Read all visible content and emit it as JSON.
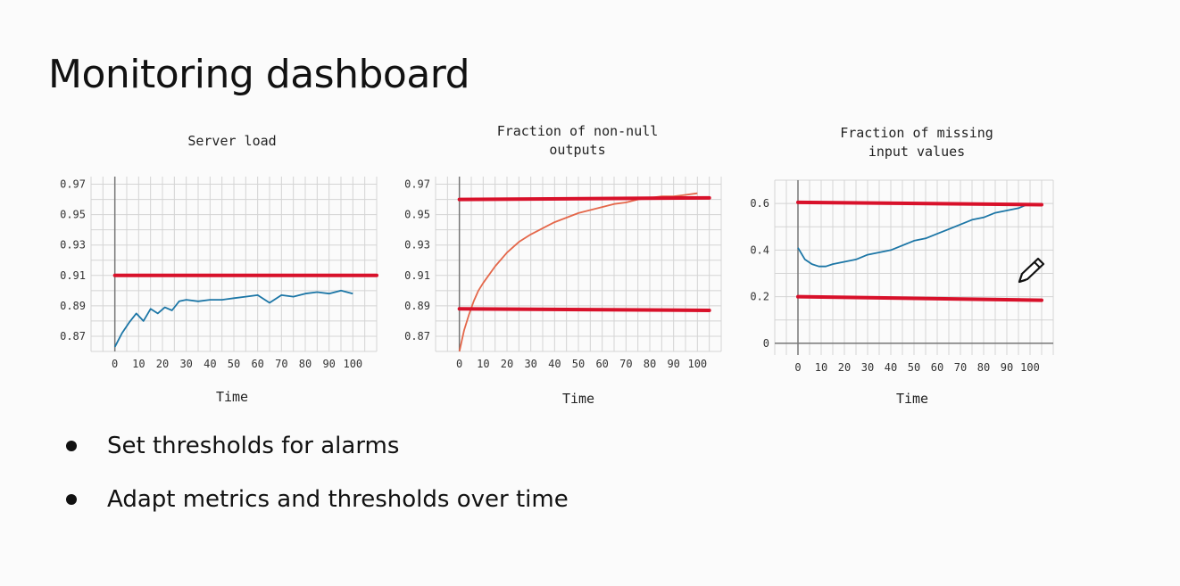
{
  "slide": {
    "title": "Monitoring dashboard",
    "bullets": [
      "Set thresholds for alarms",
      "Adapt metrics and thresholds over time"
    ]
  },
  "colors": {
    "threshold": "#d8112a",
    "series_blue": "#1c76a6",
    "series_orange": "#e4674a",
    "grid": "#d4d4d4",
    "axis": "#777777"
  },
  "icons": {
    "annotation": "pencil-icon"
  },
  "chart_data": [
    {
      "type": "line",
      "title": "Server load",
      "xlabel": "Time",
      "ylabel": "",
      "xlim": [
        -10,
        110
      ],
      "ylim": [
        0.86,
        0.975
      ],
      "xticks": [
        0,
        10,
        20,
        30,
        40,
        50,
        60,
        70,
        80,
        90,
        100
      ],
      "yticks": [
        0.87,
        0.89,
        0.91,
        0.93,
        0.95,
        0.97
      ],
      "yticklabels": [
        "0.87",
        "0.89",
        "0.91",
        "0.93",
        "0.95",
        "0.97"
      ],
      "grid": true,
      "series": [
        {
          "color": "#1c76a6",
          "x": [
            0,
            3,
            6,
            9,
            12,
            15,
            18,
            21,
            24,
            27,
            30,
            35,
            40,
            45,
            50,
            55,
            60,
            65,
            70,
            75,
            80,
            85,
            90,
            95,
            100
          ],
          "y": [
            0.863,
            0.872,
            0.879,
            0.885,
            0.88,
            0.888,
            0.885,
            0.889,
            0.887,
            0.893,
            0.894,
            0.893,
            0.894,
            0.894,
            0.895,
            0.896,
            0.897,
            0.892,
            0.897,
            0.896,
            0.898,
            0.899,
            0.898,
            0.9,
            0.898
          ]
        }
      ],
      "thresholds": [
        {
          "color": "#d8112a",
          "x": [
            0,
            110
          ],
          "y": [
            0.91,
            0.91
          ]
        }
      ]
    },
    {
      "type": "line",
      "title": "Fraction of non-null outputs",
      "xlabel": "Time",
      "ylabel": "",
      "xlim": [
        -10,
        110
      ],
      "ylim": [
        0.86,
        0.975
      ],
      "xticks": [
        0,
        10,
        20,
        30,
        40,
        50,
        60,
        70,
        80,
        90,
        100
      ],
      "yticks": [
        0.87,
        0.89,
        0.91,
        0.93,
        0.95,
        0.97
      ],
      "yticklabels": [
        "0.87",
        "0.89",
        "0.91",
        "0.93",
        "0.95",
        "0.97"
      ],
      "grid": true,
      "series": [
        {
          "color": "#e4674a",
          "x": [
            0,
            2,
            4,
            6,
            8,
            10,
            15,
            20,
            25,
            30,
            35,
            40,
            45,
            50,
            55,
            60,
            65,
            70,
            75,
            80,
            85,
            90,
            95,
            100
          ],
          "y": [
            0.86,
            0.874,
            0.884,
            0.893,
            0.9,
            0.905,
            0.916,
            0.925,
            0.932,
            0.937,
            0.941,
            0.945,
            0.948,
            0.951,
            0.953,
            0.955,
            0.957,
            0.958,
            0.96,
            0.961,
            0.962,
            0.962,
            0.963,
            0.964
          ]
        }
      ],
      "thresholds": [
        {
          "color": "#d8112a",
          "x": [
            0,
            105
          ],
          "y": [
            0.96,
            0.961
          ]
        },
        {
          "color": "#d8112a",
          "x": [
            0,
            105
          ],
          "y": [
            0.888,
            0.887
          ]
        }
      ]
    },
    {
      "type": "line",
      "title": "Fraction of missing input values",
      "xlabel": "Time",
      "ylabel": "",
      "xlim": [
        -10,
        110
      ],
      "ylim": [
        -0.05,
        0.7
      ],
      "xticks": [
        0,
        10,
        20,
        30,
        40,
        50,
        60,
        70,
        80,
        90,
        100
      ],
      "yticks": [
        0,
        0.2,
        0.4,
        0.6
      ],
      "yticklabels": [
        "0",
        "0.2",
        "0.4",
        "0.6"
      ],
      "grid": true,
      "series": [
        {
          "color": "#1c76a6",
          "x": [
            0,
            3,
            6,
            9,
            12,
            15,
            20,
            25,
            30,
            35,
            40,
            45,
            50,
            55,
            60,
            65,
            70,
            75,
            80,
            85,
            90,
            95,
            100
          ],
          "y": [
            0.41,
            0.36,
            0.34,
            0.33,
            0.33,
            0.34,
            0.35,
            0.36,
            0.38,
            0.39,
            0.4,
            0.42,
            0.44,
            0.45,
            0.47,
            0.49,
            0.51,
            0.53,
            0.54,
            0.56,
            0.57,
            0.58,
            0.6
          ]
        }
      ],
      "thresholds": [
        {
          "color": "#d8112a",
          "x": [
            0,
            105
          ],
          "y": [
            0.605,
            0.595
          ]
        },
        {
          "color": "#d8112a",
          "x": [
            0,
            105
          ],
          "y": [
            0.2,
            0.185
          ]
        }
      ]
    }
  ]
}
